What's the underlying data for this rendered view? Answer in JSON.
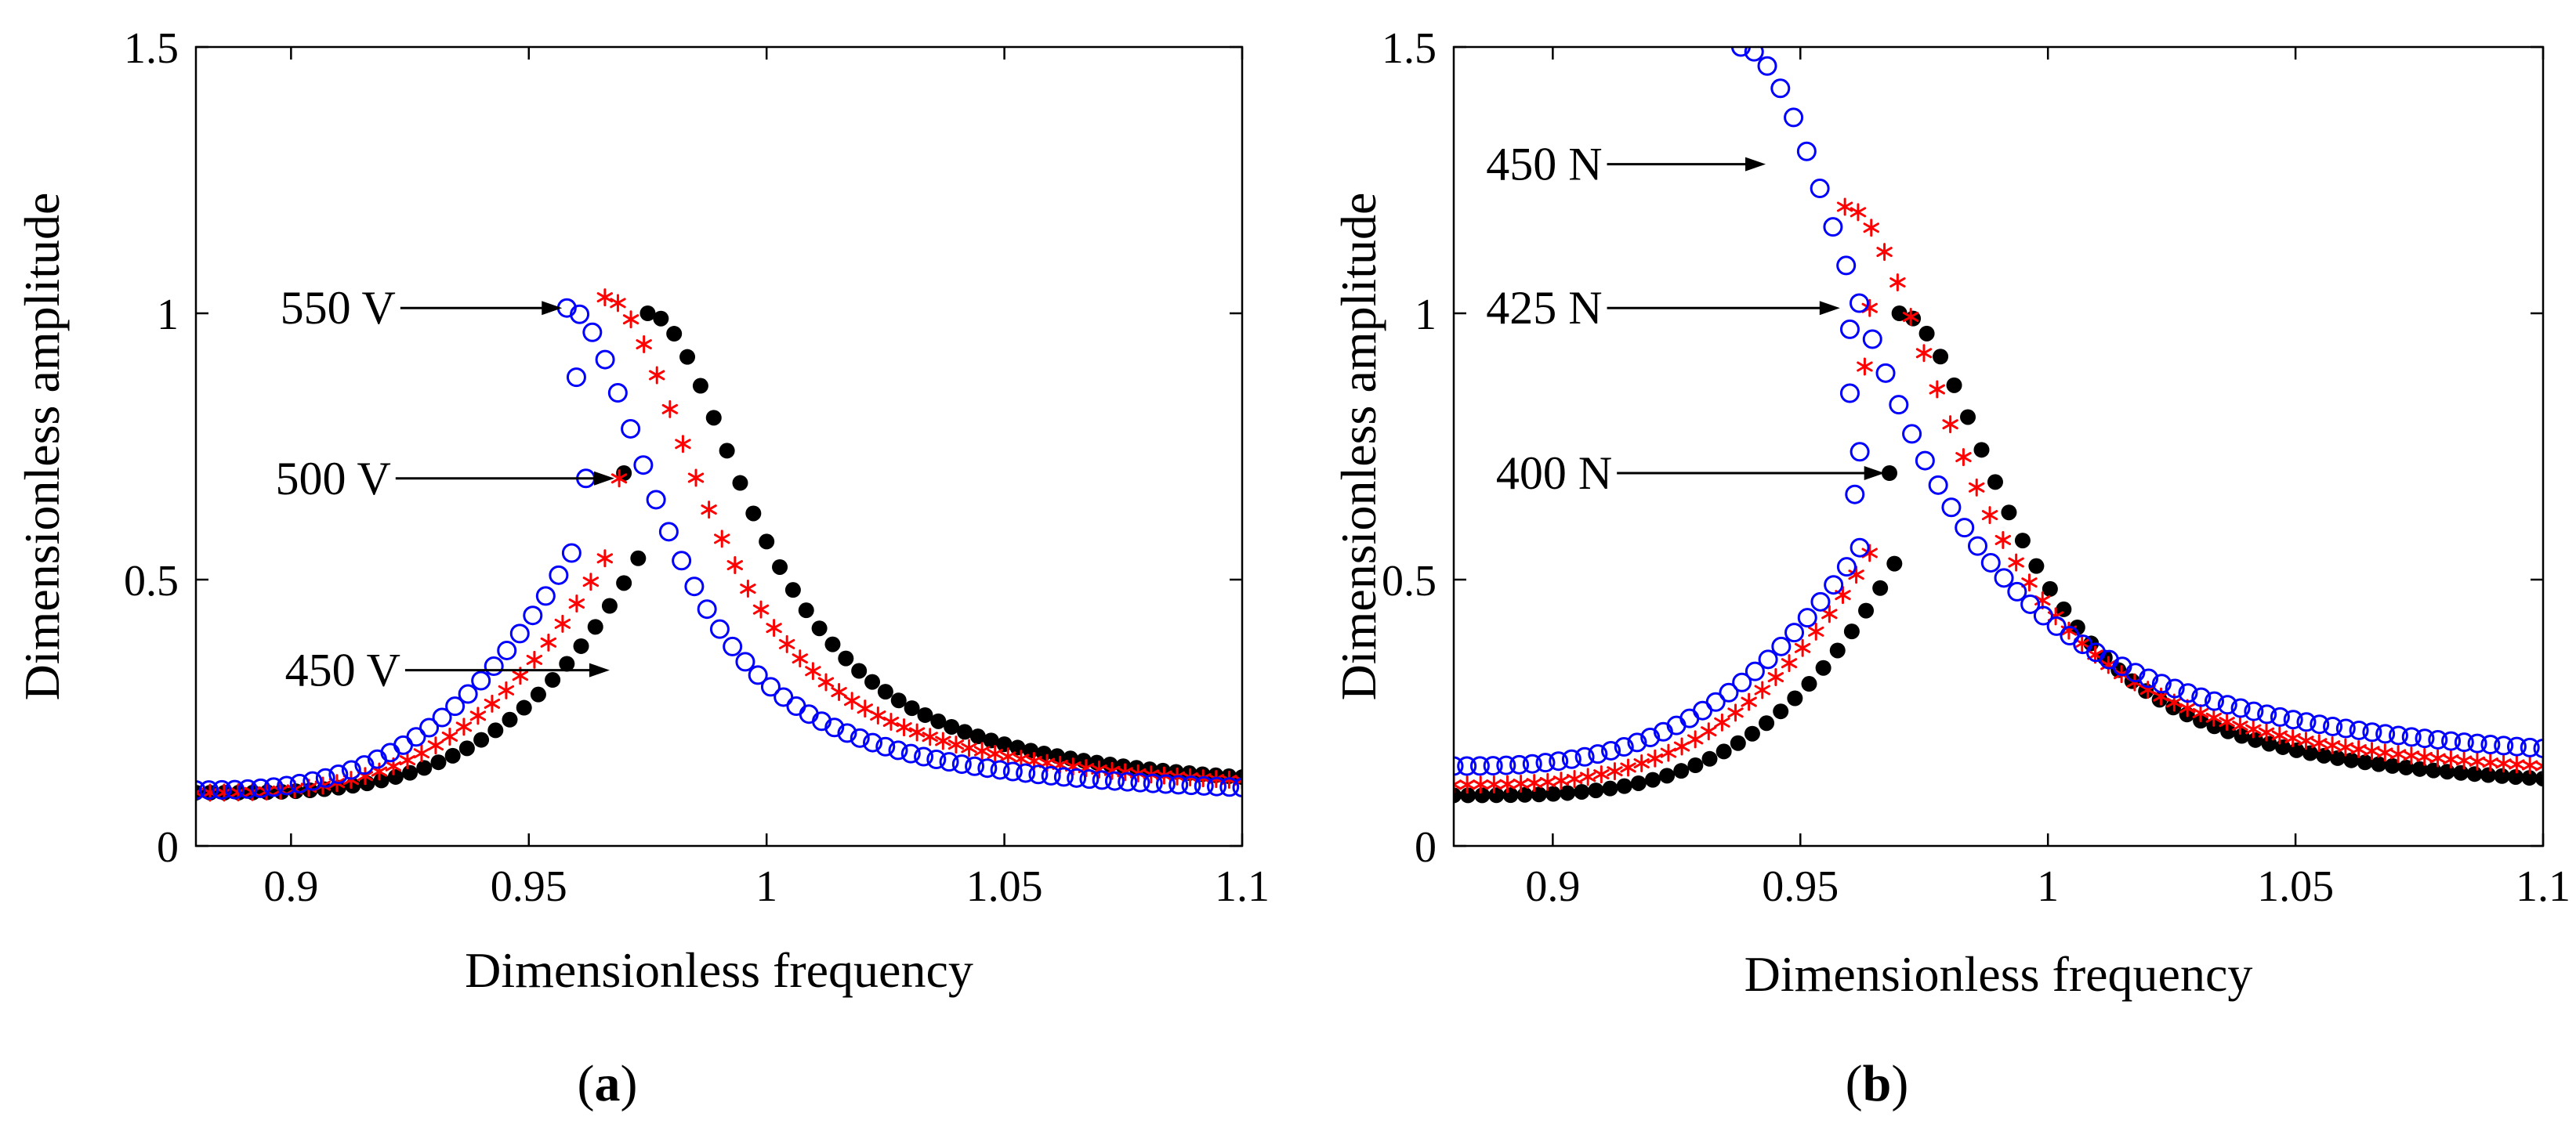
{
  "chart_data": [
    {
      "type": "scatter",
      "panel": "(a)",
      "panel_letter": "a",
      "xlabel": "Dimensionless frequency",
      "ylabel": "Dimensionless amplitude",
      "xlim": [
        0.88,
        1.1
      ],
      "ylim": [
        0,
        1.5
      ],
      "xticks": [
        0.9,
        0.95,
        1,
        1.05,
        1.1
      ],
      "xtick_labels": [
        "0.9",
        "0.95",
        "1",
        "1.05",
        "1.1"
      ],
      "yticks": [
        0,
        0.5,
        1,
        1.5
      ],
      "ytick_labels": [
        "0",
        "0.5",
        "1",
        "1.5"
      ],
      "series": [
        {
          "name": "450 V",
          "marker": "dot",
          "color": "#000000",
          "upper": {
            "x_start": 0.975,
            "x_end": 1.1,
            "peak": 1.0,
            "gamma": 0.0265,
            "tail": 0.09,
            "n": 46
          },
          "lower": {
            "x_start": 0.88,
            "x_end": 0.973,
            "base": 0.1,
            "top": 0.54,
            "power": 3.4,
            "n": 32
          },
          "mid": [
            [
              0.97,
              0.7
            ]
          ]
        },
        {
          "name": "500 V",
          "marker": "asterisk",
          "color": "#ff0000",
          "upper": {
            "x_start": 0.966,
            "x_end": 1.1,
            "peak": 1.03,
            "gamma": 0.0255,
            "tail": 0.09,
            "n": 50
          },
          "lower": {
            "x_start": 0.88,
            "x_end": 0.966,
            "base": 0.1,
            "top": 0.54,
            "power": 3.0,
            "n": 30
          },
          "mid": [
            [
              0.969,
              0.69
            ]
          ]
        },
        {
          "name": "550 V",
          "marker": "circle",
          "color": "#0000ff",
          "upper": {
            "x_start": 0.958,
            "x_end": 1.1,
            "peak": 1.01,
            "gamma": 0.0235,
            "tail": 0.085,
            "n": 54
          },
          "lower": {
            "x_start": 0.88,
            "x_end": 0.959,
            "base": 0.105,
            "top": 0.55,
            "power": 2.8,
            "n": 30
          },
          "mid": [
            [
              0.96,
              0.88
            ],
            [
              0.962,
              0.69
            ]
          ]
        }
      ],
      "annotations": [
        {
          "text": "550 V",
          "x": 0.922,
          "y": 1.01,
          "target_x": 0.957,
          "target_y": 1.01
        },
        {
          "text": "500 V",
          "x": 0.921,
          "y": 0.69,
          "target_x": 0.968,
          "target_y": 0.69
        },
        {
          "text": "450 V",
          "x": 0.923,
          "y": 0.33,
          "target_x": 0.967,
          "target_y": 0.33
        }
      ]
    },
    {
      "type": "scatter",
      "panel": "(b)",
      "panel_letter": "b",
      "xlabel": "Dimensionless frequency",
      "ylabel": "Dimensionless amplitude",
      "xlim": [
        0.88,
        1.1
      ],
      "ylim": [
        0,
        1.5
      ],
      "xticks": [
        0.9,
        0.95,
        1,
        1.05,
        1.1
      ],
      "xtick_labels": [
        "0.9",
        "0.95",
        "1",
        "1.05",
        "1.1"
      ],
      "yticks": [
        0,
        0.5,
        1,
        1.5
      ],
      "ytick_labels": [
        "0",
        "0.5",
        "1",
        "1.5"
      ],
      "series": [
        {
          "name": "400 N",
          "marker": "dot",
          "color": "#000000",
          "upper": {
            "x_start": 0.97,
            "x_end": 1.1,
            "peak": 1.0,
            "gamma": 0.0265,
            "tail": 0.09,
            "n": 48
          },
          "lower": {
            "x_start": 0.88,
            "x_end": 0.969,
            "base": 0.095,
            "top": 0.53,
            "power": 3.4,
            "n": 32
          },
          "mid": [
            [
              0.968,
              0.7
            ]
          ]
        },
        {
          "name": "425 N",
          "marker": "asterisk",
          "color": "#ff0000",
          "upper": {
            "x_start": 0.959,
            "x_end": 1.1,
            "peak": 1.2,
            "gamma": 0.0275,
            "tail": 0.11,
            "n": 54
          },
          "lower": {
            "x_start": 0.88,
            "x_end": 0.964,
            "base": 0.115,
            "top": 0.55,
            "power": 3.0,
            "n": 32
          },
          "mid": [
            [
              0.963,
              0.9
            ],
            [
              0.964,
              1.01
            ]
          ]
        },
        {
          "name": "450 N",
          "marker": "circle",
          "color": "#0000ff",
          "upper": {
            "x_start": 0.938,
            "x_end": 1.1,
            "peak": 1.5,
            "gamma": 0.0325,
            "tail": 0.13,
            "n": 62
          },
          "lower": {
            "x_start": 0.88,
            "x_end": 0.962,
            "base": 0.15,
            "top": 0.56,
            "power": 2.8,
            "n": 32
          },
          "mid": [
            [
              0.96,
              0.97
            ],
            [
              0.96,
              0.85
            ],
            [
              0.962,
              0.74
            ],
            [
              0.961,
              0.66
            ]
          ]
        }
      ],
      "annotations": [
        {
          "text": "450 N",
          "x": 0.91,
          "y": 1.28,
          "target_x": 0.943,
          "target_y": 1.28
        },
        {
          "text": "425 N",
          "x": 0.91,
          "y": 1.01,
          "target_x": 0.958,
          "target_y": 1.01
        },
        {
          "text": "400 N",
          "x": 0.912,
          "y": 0.7,
          "target_x": 0.967,
          "target_y": 0.7
        }
      ]
    }
  ]
}
